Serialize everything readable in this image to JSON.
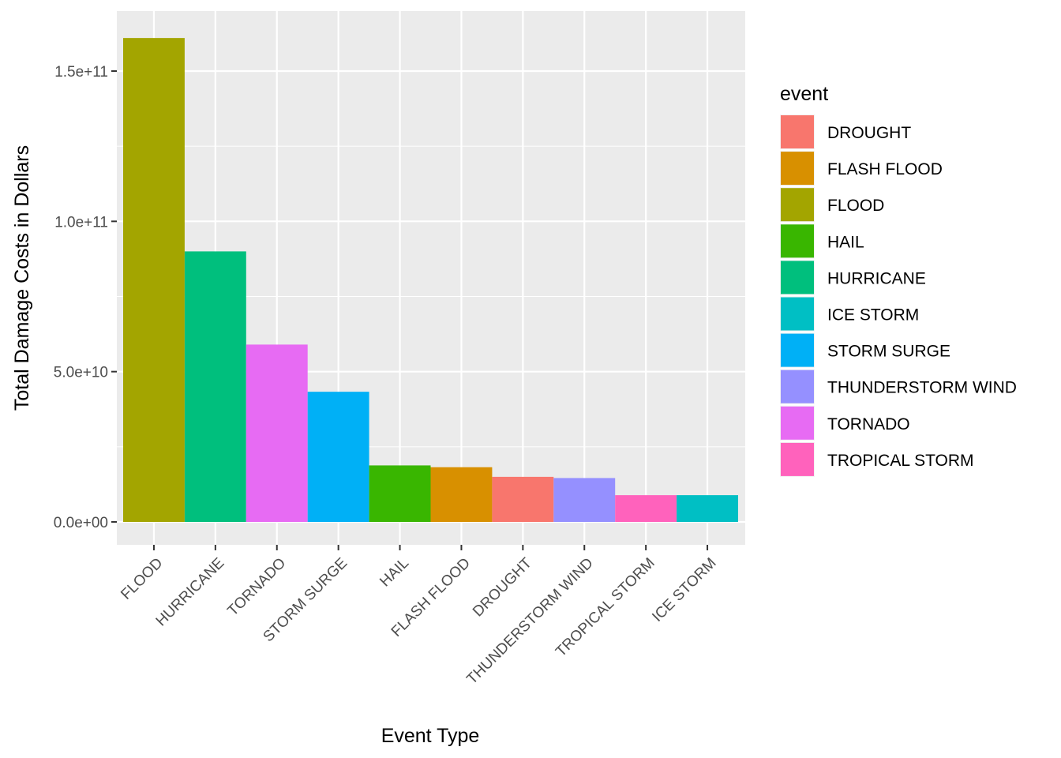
{
  "chart_data": {
    "type": "bar",
    "title": "",
    "xlabel": "Event Type",
    "ylabel": "Total Damage Costs in Dollars",
    "ylim": [
      0,
      165000000000
    ],
    "yticks": [
      0,
      50000000000,
      100000000000,
      150000000000
    ],
    "ytick_labels": [
      "0.0e+00",
      "5.0e+10",
      "1.0e+11",
      "1.5e+11"
    ],
    "categories": [
      "FLOOD",
      "HURRICANE",
      "TORNADO",
      "STORM SURGE",
      "HAIL",
      "FLASH FLOOD",
      "DROUGHT",
      "THUNDERSTORM WIND",
      "TROPICAL STORM",
      "ICE STORM"
    ],
    "values": [
      161000000000,
      90000000000,
      59000000000,
      43300000000,
      18800000000,
      18200000000,
      15000000000,
      14600000000,
      8900000000,
      8900000000
    ],
    "legend_title": "event",
    "legend": [
      {
        "label": "DROUGHT",
        "color": "#F8766D"
      },
      {
        "label": "FLASH FLOOD",
        "color": "#D89000"
      },
      {
        "label": "FLOOD",
        "color": "#A3A500"
      },
      {
        "label": "HAIL",
        "color": "#39B600"
      },
      {
        "label": "HURRICANE",
        "color": "#00BF7D"
      },
      {
        "label": "ICE STORM",
        "color": "#00BFC4"
      },
      {
        "label": "STORM SURGE",
        "color": "#00B0F6"
      },
      {
        "label": "THUNDERSTORM WIND",
        "color": "#9590FF"
      },
      {
        "label": "TORNADO",
        "color": "#E76BF3"
      },
      {
        "label": "TROPICAL STORM",
        "color": "#FF62BC"
      }
    ],
    "grid": true,
    "legend_position": "right",
    "panel_color": "#EBEBEB",
    "grid_color": "#FFFFFF"
  }
}
